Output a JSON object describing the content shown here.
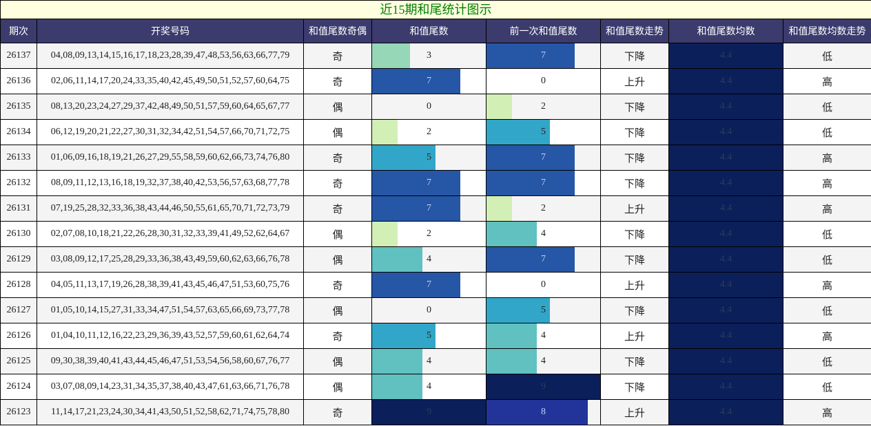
{
  "title": "近15期和尾统计图示",
  "headers": [
    "期次",
    "开奖号码",
    "和值尾数奇偶",
    "和值尾数",
    "前一次和值尾数",
    "和值尾数走势",
    "和值尾数均数",
    "和值尾数均数走势"
  ],
  "colors": {
    "0": "#ffffff",
    "2": "#d2efb6",
    "3": "#96d7b8",
    "4": "#61c0c0",
    "5": "#32a6c8",
    "7": "#2656a6",
    "8": "#22349a",
    "9": "#0b1f5a"
  },
  "rows": [
    {
      "period": "26137",
      "numbers": "04,08,09,13,14,15,16,17,18,23,28,39,47,48,53,56,63,66,77,79",
      "parity": "奇",
      "tail": "3",
      "prev_tail": "7",
      "trend": "下降",
      "avg": "4.4",
      "avg_trend": "低"
    },
    {
      "period": "26136",
      "numbers": "02,06,11,14,17,20,24,33,35,40,42,45,49,50,51,52,57,60,64,75",
      "parity": "奇",
      "tail": "7",
      "prev_tail": "0",
      "trend": "上升",
      "avg": "4.4",
      "avg_trend": "高"
    },
    {
      "period": "26135",
      "numbers": "08,13,20,23,24,27,29,37,42,48,49,50,51,57,59,60,64,65,67,77",
      "parity": "偶",
      "tail": "0",
      "prev_tail": "2",
      "trend": "下降",
      "avg": "4.4",
      "avg_trend": "低"
    },
    {
      "period": "26134",
      "numbers": "06,12,19,20,21,22,27,30,31,32,34,42,51,54,57,66,70,71,72,75",
      "parity": "偶",
      "tail": "2",
      "prev_tail": "5",
      "trend": "下降",
      "avg": "4.4",
      "avg_trend": "低"
    },
    {
      "period": "26133",
      "numbers": "01,06,09,16,18,19,21,26,27,29,55,58,59,60,62,66,73,74,76,80",
      "parity": "奇",
      "tail": "5",
      "prev_tail": "7",
      "trend": "下降",
      "avg": "4.4",
      "avg_trend": "高"
    },
    {
      "period": "26132",
      "numbers": "08,09,11,12,13,16,18,19,32,37,38,40,42,53,56,57,63,68,77,78",
      "parity": "奇",
      "tail": "7",
      "prev_tail": "7",
      "trend": "下降",
      "avg": "4.4",
      "avg_trend": "高"
    },
    {
      "period": "26131",
      "numbers": "07,19,25,28,32,33,36,38,43,44,46,50,55,61,65,70,71,72,73,79",
      "parity": "奇",
      "tail": "7",
      "prev_tail": "2",
      "trend": "上升",
      "avg": "4.4",
      "avg_trend": "高"
    },
    {
      "period": "26130",
      "numbers": "02,07,08,10,18,21,22,26,28,30,31,32,33,39,41,49,52,62,64,67",
      "parity": "偶",
      "tail": "2",
      "prev_tail": "4",
      "trend": "下降",
      "avg": "4.4",
      "avg_trend": "低"
    },
    {
      "period": "26129",
      "numbers": "03,08,09,12,17,25,28,29,33,36,38,43,49,59,60,62,63,66,76,78",
      "parity": "偶",
      "tail": "4",
      "prev_tail": "7",
      "trend": "下降",
      "avg": "4.4",
      "avg_trend": "低"
    },
    {
      "period": "26128",
      "numbers": "04,05,11,13,17,19,26,28,38,39,41,43,45,46,47,51,53,60,75,76",
      "parity": "奇",
      "tail": "7",
      "prev_tail": "0",
      "trend": "上升",
      "avg": "4.4",
      "avg_trend": "高"
    },
    {
      "period": "26127",
      "numbers": "01,05,10,14,15,27,31,33,34,47,51,54,57,63,65,66,69,73,77,78",
      "parity": "偶",
      "tail": "0",
      "prev_tail": "5",
      "trend": "下降",
      "avg": "4.4",
      "avg_trend": "低"
    },
    {
      "period": "26126",
      "numbers": "01,04,10,11,12,16,22,23,29,36,39,43,52,57,59,60,61,62,64,74",
      "parity": "奇",
      "tail": "5",
      "prev_tail": "4",
      "trend": "上升",
      "avg": "4.4",
      "avg_trend": "高"
    },
    {
      "period": "26125",
      "numbers": "09,30,38,39,40,41,43,44,45,46,47,51,53,54,56,58,60,67,76,77",
      "parity": "偶",
      "tail": "4",
      "prev_tail": "4",
      "trend": "下降",
      "avg": "4.4",
      "avg_trend": "低"
    },
    {
      "period": "26124",
      "numbers": "03,07,08,09,14,23,31,34,35,37,38,40,43,47,61,63,66,71,76,78",
      "parity": "偶",
      "tail": "4",
      "prev_tail": "9",
      "trend": "下降",
      "avg": "4.4",
      "avg_trend": "低"
    },
    {
      "period": "26123",
      "numbers": "11,14,17,21,23,24,30,34,41,43,50,51,52,58,62,71,74,75,78,80",
      "parity": "奇",
      "tail": "9",
      "prev_tail": "8",
      "trend": "上升",
      "avg": "4.4",
      "avg_trend": "高"
    }
  ]
}
